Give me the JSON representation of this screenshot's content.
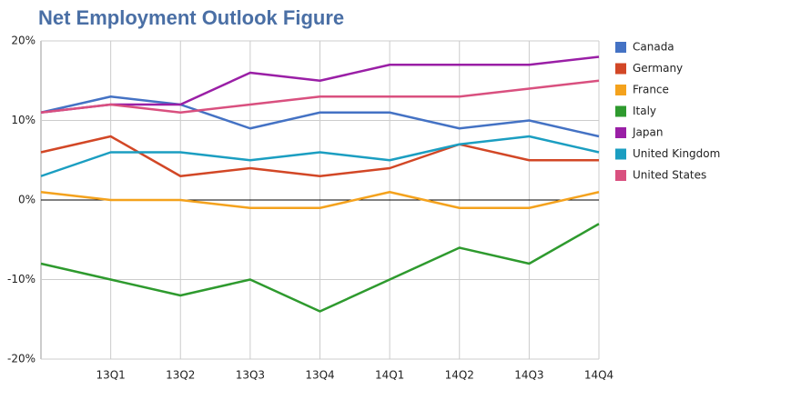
{
  "chart_data": {
    "type": "line",
    "title": "Net Employment Outlook Figure",
    "categories": [
      null,
      "13Q1",
      "13Q2",
      "13Q3",
      "13Q4",
      "14Q1",
      "14Q2",
      "14Q3",
      "14Q4"
    ],
    "series": [
      {
        "name": "Canada",
        "color": "#4472c4",
        "values": [
          11,
          13,
          12,
          9,
          11,
          11,
          9,
          10,
          8
        ]
      },
      {
        "name": "Germany",
        "color": "#d24726",
        "values": [
          6,
          8,
          3,
          4,
          3,
          4,
          7,
          5,
          5
        ]
      },
      {
        "name": "France",
        "color": "#f4a21d",
        "values": [
          1,
          0,
          0,
          -1,
          -1,
          1,
          -1,
          -1,
          1
        ]
      },
      {
        "name": "Italy",
        "color": "#2e9a2e",
        "values": [
          -8,
          -10,
          -12,
          -10,
          -14,
          -10,
          -6,
          -8,
          -3
        ]
      },
      {
        "name": "Japan",
        "color": "#9a1fa6",
        "values": [
          11,
          12,
          12,
          16,
          15,
          17,
          17,
          17,
          18
        ]
      },
      {
        "name": "United Kingdom",
        "color": "#1b9ec1",
        "values": [
          3,
          6,
          6,
          5,
          6,
          5,
          7,
          8,
          6
        ]
      },
      {
        "name": "United States",
        "color": "#d9507f",
        "values": [
          11,
          12,
          11,
          12,
          13,
          13,
          13,
          14,
          15
        ]
      }
    ],
    "ylim": [
      -20,
      20
    ],
    "yticks": [
      {
        "value": -20,
        "label": "-20%"
      },
      {
        "value": -10,
        "label": "-10%"
      },
      {
        "value": 0,
        "label": "0%"
      },
      {
        "value": 10,
        "label": "10%"
      },
      {
        "value": 20,
        "label": "20%"
      }
    ],
    "grid": true,
    "legend": "right"
  }
}
